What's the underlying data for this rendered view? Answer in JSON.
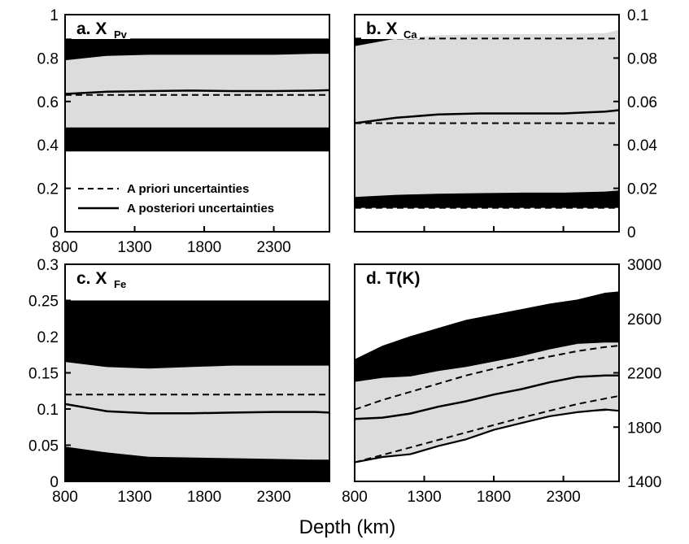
{
  "figure": {
    "xlabel": "Depth (km)",
    "legend": {
      "prior_label": "A priori uncertainties",
      "posterior_label": "A posteriori uncertainties"
    },
    "colors": {
      "prior_band": "#000000",
      "posterior_band": "#dcdcdc",
      "line": "#000000",
      "background": "#ffffff"
    }
  },
  "chart_data": [
    {
      "type": "area",
      "panel": "a",
      "title_main": "a. X",
      "title_sub": "Pv",
      "y_axis_side": "left",
      "xlim": [
        800,
        2700
      ],
      "ylim": [
        0,
        1
      ],
      "xticks": [
        "800",
        "1300",
        "1800",
        "2300"
      ],
      "yticks": [
        "0",
        "0.2",
        "0.4",
        "0.6",
        "0.8",
        "1"
      ],
      "x": [
        800,
        1100,
        1400,
        1700,
        2000,
        2300,
        2600,
        2700
      ],
      "prior_band": {
        "lower": [
          0.37,
          0.37,
          0.37,
          0.37,
          0.37,
          0.37,
          0.37,
          0.37
        ],
        "upper": [
          0.89,
          0.89,
          0.89,
          0.89,
          0.89,
          0.89,
          0.89,
          0.89
        ]
      },
      "prior_mean": [
        0.63,
        0.63,
        0.63,
        0.63,
        0.63,
        0.63,
        0.63,
        0.63
      ],
      "posterior_band": {
        "lower": [
          0.48,
          0.48,
          0.48,
          0.48,
          0.48,
          0.48,
          0.48,
          0.48
        ],
        "upper": [
          0.79,
          0.81,
          0.815,
          0.815,
          0.815,
          0.815,
          0.82,
          0.82
        ]
      },
      "posterior_mean": [
        0.635,
        0.645,
        0.648,
        0.65,
        0.648,
        0.648,
        0.65,
        0.652
      ],
      "show_prior_bounds": false,
      "show_posterior_bounds": false
    },
    {
      "type": "area",
      "panel": "b",
      "title_main": "b. X",
      "title_sub": "Ca",
      "y_axis_side": "right",
      "xlim": [
        800,
        2700
      ],
      "ylim": [
        0,
        0.1
      ],
      "xticks": [],
      "yticks": [
        "0",
        "0.02",
        "0.04",
        "0.06",
        "0.08",
        "0.1"
      ],
      "x": [
        800,
        1100,
        1400,
        1700,
        2000,
        2300,
        2600,
        2700
      ],
      "prior_band": {
        "lower": [
          0.011,
          0.011,
          0.011,
          0.011,
          0.011,
          0.011,
          0.011,
          0.011
        ],
        "upper": [
          0.089,
          0.089,
          0.089,
          0.089,
          0.089,
          0.089,
          0.089,
          0.089
        ]
      },
      "prior_mean": [
        0.05,
        0.05,
        0.05,
        0.05,
        0.05,
        0.05,
        0.05,
        0.05
      ],
      "posterior_band": {
        "lower": [
          0.016,
          0.017,
          0.0175,
          0.0178,
          0.018,
          0.018,
          0.0185,
          0.019
        ],
        "upper": [
          0.0855,
          0.089,
          0.0905,
          0.091,
          0.091,
          0.091,
          0.0915,
          0.093
        ]
      },
      "posterior_mean": [
        0.05,
        0.0525,
        0.054,
        0.0545,
        0.0545,
        0.0545,
        0.0553,
        0.056
      ],
      "show_prior_bounds": true,
      "show_posterior_bounds": false
    },
    {
      "type": "area",
      "panel": "c",
      "title_main": "c. X",
      "title_sub": "Fe",
      "y_axis_side": "left",
      "xlim": [
        800,
        2700
      ],
      "ylim": [
        0,
        0.3
      ],
      "xticks": [
        "800",
        "1300",
        "1800",
        "2300"
      ],
      "yticks": [
        "0",
        "0.05",
        "0.1",
        "0.15",
        "0.2",
        "0.25",
        "0.3"
      ],
      "x": [
        800,
        1100,
        1400,
        1700,
        2000,
        2300,
        2600,
        2700
      ],
      "prior_band": {
        "lower": [
          0,
          0,
          0,
          0,
          0,
          0,
          0,
          0
        ],
        "upper": [
          0.25,
          0.25,
          0.25,
          0.25,
          0.25,
          0.25,
          0.25,
          0.25
        ]
      },
      "prior_mean": [
        0.12,
        0.12,
        0.12,
        0.12,
        0.12,
        0.12,
        0.12,
        0.12
      ],
      "posterior_band": {
        "lower": [
          0.048,
          0.04,
          0.034,
          0.033,
          0.032,
          0.031,
          0.03,
          0.03
        ],
        "upper": [
          0.165,
          0.158,
          0.156,
          0.158,
          0.16,
          0.16,
          0.16,
          0.16
        ]
      },
      "posterior_mean": [
        0.107,
        0.097,
        0.094,
        0.094,
        0.095,
        0.096,
        0.096,
        0.095
      ],
      "show_prior_bounds": false,
      "show_posterior_bounds": false
    },
    {
      "type": "area",
      "panel": "d",
      "title_main": "d. T(K)",
      "title_sub": "",
      "y_axis_side": "right",
      "xlim": [
        800,
        2700
      ],
      "ylim": [
        1400,
        3000
      ],
      "xticks": [
        "800",
        "1300",
        "1800",
        "2300"
      ],
      "yticks": [
        "1400",
        "1800",
        "2200",
        "2600",
        "3000"
      ],
      "x": [
        800,
        1000,
        1200,
        1400,
        1600,
        1800,
        2000,
        2200,
        2400,
        2600,
        2700
      ],
      "prior_band": {
        "lower": [
          1570,
          1580,
          1610,
          1660,
          1720,
          1780,
          1830,
          1880,
          1910,
          1920,
          1930
        ],
        "upper": [
          2300,
          2400,
          2470,
          2530,
          2590,
          2630,
          2670,
          2710,
          2740,
          2790,
          2800
        ]
      },
      "prior_mean": [
        1540,
        1595,
        1650,
        1705,
        1760,
        1815,
        1870,
        1920,
        1970,
        2010,
        2030
      ],
      "prior_upper_line": [
        1930,
        2000,
        2060,
        2120,
        2180,
        2230,
        2280,
        2320,
        2360,
        2390,
        2400
      ],
      "posterior_band": {
        "lower": [
          1540,
          1580,
          1600,
          1660,
          1710,
          1780,
          1830,
          1880,
          1910,
          1930,
          1920
        ],
        "upper": [
          2140,
          2170,
          2180,
          2220,
          2250,
          2290,
          2330,
          2380,
          2420,
          2430,
          2430
        ]
      },
      "posterior_mean": [
        1860,
        1870,
        1900,
        1950,
        1990,
        2040,
        2080,
        2130,
        2170,
        2180,
        2180
      ],
      "show_prior_bounds": false,
      "show_posterior_bounds": true
    }
  ]
}
